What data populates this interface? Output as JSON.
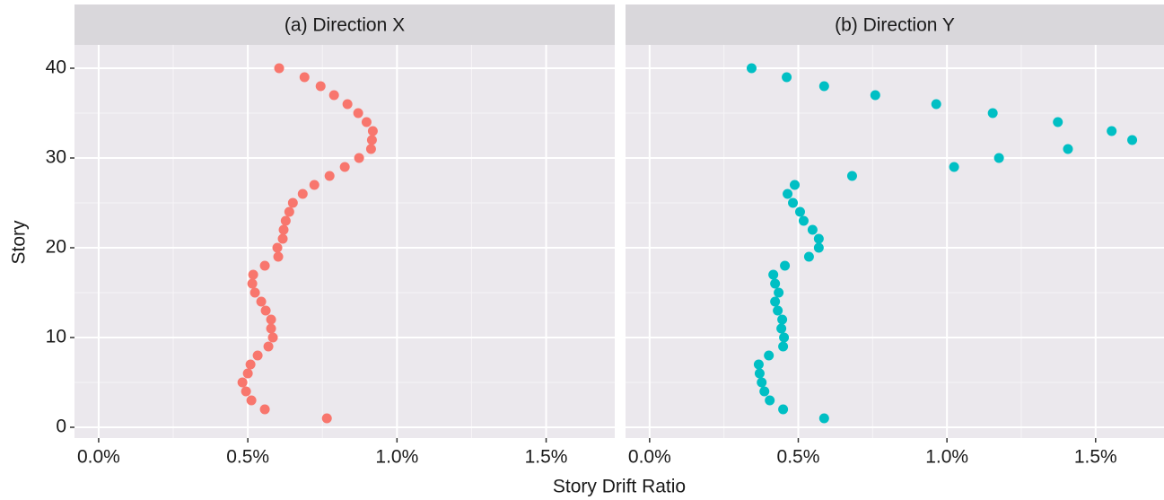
{
  "chart_data": {
    "type": "scatter",
    "x_label": "Story Drift Ratio",
    "y_label": "Story",
    "xlim": [
      -0.081,
      1.73
    ],
    "ylim": [
      -1.2,
      42.6
    ],
    "xticks": [
      {
        "value": 0,
        "label": "0.0%"
      },
      {
        "value": 0.5,
        "label": "0.5%"
      },
      {
        "value": 1,
        "label": "1.0%"
      },
      {
        "value": 1.5,
        "label": "1.5%"
      }
    ],
    "yticks": [
      0,
      10,
      20,
      30,
      40
    ],
    "minor_xticks": [
      0.25,
      0.75,
      1.25
    ],
    "minor_yticks": [
      5,
      15,
      25,
      35
    ],
    "grid": true,
    "facets": [
      {
        "title": "(a) Direction X",
        "color": "#F8766D",
        "x": [
          0.765,
          0.557,
          0.512,
          0.494,
          0.482,
          0.5,
          0.509,
          0.533,
          0.569,
          0.584,
          0.578,
          0.578,
          0.56,
          0.545,
          0.524,
          0.515,
          0.518,
          0.557,
          0.602,
          0.599,
          0.617,
          0.62,
          0.627,
          0.639,
          0.651,
          0.684,
          0.723,
          0.774,
          0.825,
          0.873,
          0.913,
          0.916,
          0.919,
          0.898,
          0.87,
          0.834,
          0.789,
          0.744,
          0.69,
          0.605
        ],
        "y": [
          1,
          2,
          3,
          4,
          5,
          6,
          7,
          8,
          9,
          10,
          11,
          12,
          13,
          14,
          15,
          16,
          17,
          18,
          19,
          20,
          21,
          22,
          23,
          24,
          25,
          26,
          27,
          28,
          29,
          30,
          31,
          32,
          33,
          34,
          35,
          36,
          37,
          38,
          39,
          40
        ]
      },
      {
        "title": "(b) Direction Y",
        "color": "#00BFC4",
        "x": [
          0.587,
          0.449,
          0.404,
          0.386,
          0.377,
          0.37,
          0.367,
          0.401,
          0.449,
          0.452,
          0.443,
          0.446,
          0.431,
          0.422,
          0.434,
          0.422,
          0.416,
          0.455,
          0.536,
          0.569,
          0.569,
          0.548,
          0.518,
          0.506,
          0.482,
          0.464,
          0.488,
          0.681,
          1.024,
          1.175,
          1.407,
          1.623,
          1.554,
          1.373,
          1.154,
          0.964,
          0.759,
          0.587,
          0.461,
          0.343
        ],
        "y": [
          1,
          2,
          3,
          4,
          5,
          6,
          7,
          8,
          9,
          10,
          11,
          12,
          13,
          14,
          15,
          16,
          17,
          18,
          19,
          20,
          21,
          22,
          23,
          24,
          25,
          26,
          27,
          28,
          29,
          30,
          31,
          32,
          33,
          34,
          35,
          36,
          37,
          38,
          39,
          40
        ]
      }
    ]
  }
}
